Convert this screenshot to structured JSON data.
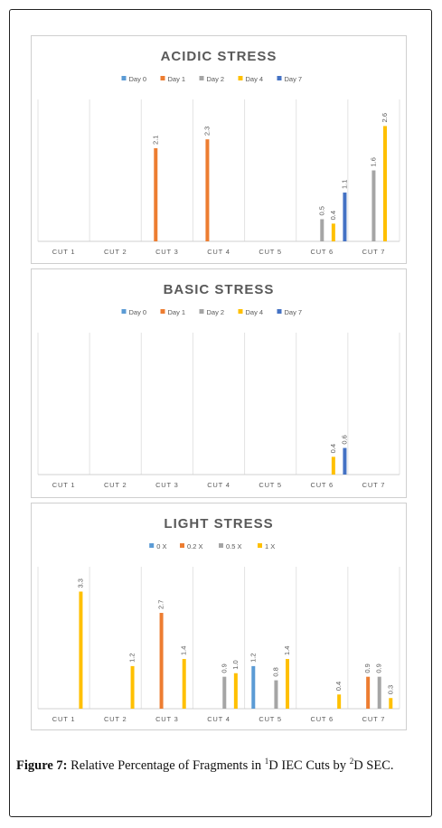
{
  "colors": {
    "day0": "#5b9bd5",
    "day1": "#ed7d31",
    "day2": "#a5a5a5",
    "day4": "#ffc000",
    "day7": "#4472c4"
  },
  "chart_data": [
    {
      "type": "bar",
      "title": "ACIDIC STRESS",
      "categories": [
        "CUT 1",
        "CUT 2",
        "CUT 3",
        "CUT 4",
        "CUT 5",
        "CUT 6",
        "CUT 7"
      ],
      "series": [
        {
          "name": "Day 0",
          "color": "#5b9bd5",
          "values": [
            null,
            null,
            null,
            null,
            null,
            null,
            null
          ]
        },
        {
          "name": "Day 1",
          "color": "#ed7d31",
          "values": [
            null,
            null,
            2.1,
            2.3,
            null,
            null,
            null
          ]
        },
        {
          "name": "Day 2",
          "color": "#a5a5a5",
          "values": [
            null,
            null,
            null,
            null,
            null,
            0.5,
            1.6
          ]
        },
        {
          "name": "Day 4",
          "color": "#ffc000",
          "values": [
            null,
            null,
            null,
            null,
            null,
            0.4,
            2.6
          ]
        },
        {
          "name": "Day 7",
          "color": "#4472c4",
          "values": [
            null,
            null,
            null,
            null,
            null,
            1.1,
            null
          ]
        }
      ],
      "ylim": [
        0,
        3.2
      ],
      "legend": "top"
    },
    {
      "type": "bar",
      "title": "BASIC STRESS",
      "categories": [
        "CUT 1",
        "CUT 2",
        "CUT 3",
        "CUT 4",
        "CUT 5",
        "CUT 6",
        "CUT 7"
      ],
      "series": [
        {
          "name": "Day 0",
          "color": "#5b9bd5",
          "values": [
            null,
            null,
            null,
            null,
            null,
            null,
            null
          ]
        },
        {
          "name": "Day 1",
          "color": "#ed7d31",
          "values": [
            null,
            null,
            null,
            null,
            null,
            null,
            null
          ]
        },
        {
          "name": "Day 2",
          "color": "#a5a5a5",
          "values": [
            null,
            null,
            null,
            null,
            null,
            null,
            null
          ]
        },
        {
          "name": "Day 4",
          "color": "#ffc000",
          "values": [
            null,
            null,
            null,
            null,
            null,
            0.4,
            null
          ]
        },
        {
          "name": "Day 7",
          "color": "#4472c4",
          "values": [
            null,
            null,
            null,
            null,
            null,
            0.6,
            null
          ]
        }
      ],
      "ylim": [
        0,
        3.2
      ],
      "legend": "top"
    },
    {
      "type": "bar",
      "title": "LIGHT STRESS",
      "categories": [
        "CUT 1",
        "CUT 2",
        "CUT 3",
        "CUT 4",
        "CUT 5",
        "CUT 6",
        "CUT 7"
      ],
      "series": [
        {
          "name": "0 X",
          "color": "#5b9bd5",
          "values": [
            null,
            null,
            null,
            null,
            1.2,
            null,
            null
          ]
        },
        {
          "name": "0.2 X",
          "color": "#ed7d31",
          "values": [
            null,
            null,
            2.7,
            null,
            null,
            null,
            0.9
          ]
        },
        {
          "name": "0.5 X",
          "color": "#a5a5a5",
          "values": [
            null,
            null,
            null,
            0.9,
            0.8,
            null,
            0.9
          ]
        },
        {
          "name": "1 X",
          "color": "#ffc000",
          "values": [
            3.3,
            1.2,
            1.4,
            1.0,
            1.4,
            0.4,
            0.3
          ]
        }
      ],
      "ylim": [
        0,
        4.0
      ],
      "legend": "top"
    }
  ],
  "caption": {
    "label": "Figure 7:",
    "text_1": " Relative Percentage of Fragments in ",
    "sup_1": "1",
    "text_2": "D IEC Cuts by ",
    "sup_2": "2",
    "text_3": "D SEC."
  }
}
